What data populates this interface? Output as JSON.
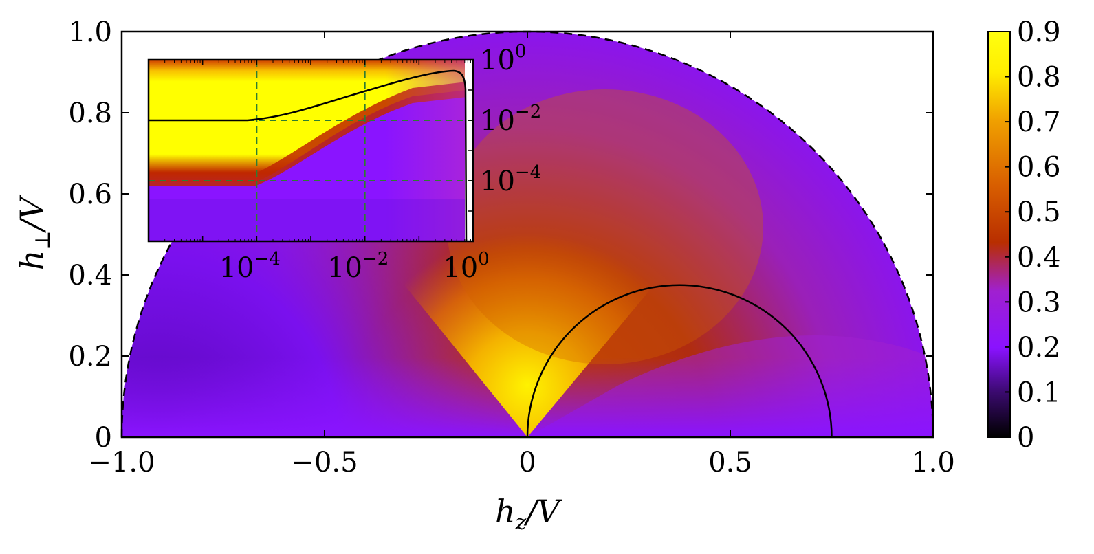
{
  "chart_data": {
    "type": "heatmap",
    "main": {
      "xlabel_parts": [
        "h",
        "z",
        "/V"
      ],
      "ylabel_parts": [
        "h",
        "⊥",
        "/V"
      ],
      "xlim": [
        -1.0,
        1.0
      ],
      "ylim": [
        0,
        1.0
      ],
      "x_ticks": [
        -1.0,
        -0.5,
        0,
        0.5,
        1.0
      ],
      "x_tick_labels": [
        "−1.0",
        "−0.5",
        "0",
        "0.5",
        "1.0"
      ],
      "y_ticks": [
        0,
        0.2,
        0.4,
        0.6,
        0.8,
        1.0
      ],
      "y_tick_labels": [
        "0",
        "0.2",
        "0.4",
        "0.6",
        "0.8",
        "1.0"
      ],
      "domain_boundary": "unit semicircle (dashed)",
      "contour_semicircle": {
        "center_hz": 0.375,
        "radius": 0.375
      }
    },
    "colorbar": {
      "range": [
        0,
        0.9
      ],
      "ticks": [
        0,
        0.1,
        0.2,
        0.3,
        0.4,
        0.5,
        0.6,
        0.7,
        0.8,
        0.9
      ],
      "tick_labels": [
        "0",
        "0.1",
        "0.2",
        "0.3",
        "0.4",
        "0.5",
        "0.6",
        "0.7",
        "0.8",
        "0.9"
      ],
      "colormap": [
        "#000000",
        "#3a0a6e",
        "#8a12ff",
        "#a020d0",
        "#b82e00",
        "#d85e00",
        "#f0a000",
        "#ffee00",
        "#ffff10"
      ]
    },
    "inset": {
      "xscale": "log",
      "yscale": "log",
      "x_tick_exponents": [
        "−4",
        "−2",
        "0"
      ],
      "y_tick_exponents": [
        "0",
        "−2",
        "−4"
      ],
      "tick_base": "10",
      "guide_lines_x": [
        0.0001,
        0.01
      ],
      "guide_lines_y": [
        0.01,
        0.0001
      ],
      "guide_color": "#2e7d32"
    }
  }
}
